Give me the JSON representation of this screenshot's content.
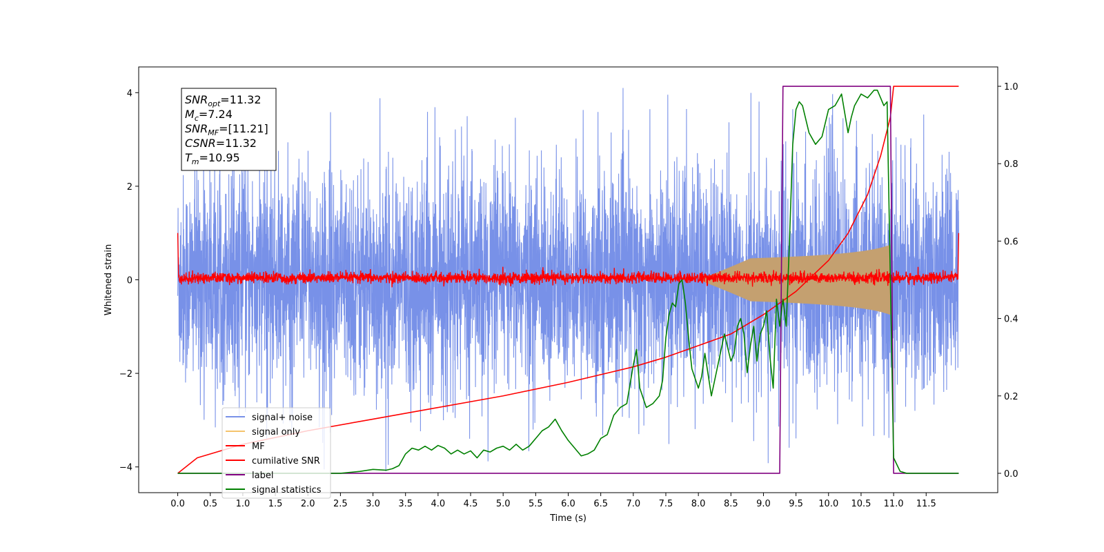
{
  "chart_data": {
    "type": "line",
    "xlabel": "Time (s)",
    "ylabel": "Whitened strain",
    "xlim": [
      -0.6,
      12.6
    ],
    "ylim": [
      -4.55,
      4.55
    ],
    "y2lim": [
      -0.05,
      1.05
    ],
    "x_ticks": [
      0.0,
      0.5,
      1.0,
      1.5,
      2.0,
      2.5,
      3.0,
      3.5,
      4.0,
      4.5,
      5.0,
      5.5,
      6.0,
      6.5,
      7.0,
      7.5,
      8.0,
      8.5,
      9.0,
      9.5,
      10.0,
      10.5,
      11.0,
      11.5
    ],
    "x_tick_labels": [
      "0.0",
      "0.5",
      "1.0",
      "1.5",
      "2.0",
      "2.5",
      "3.0",
      "3.5",
      "4.0",
      "4.5",
      "5.0",
      "5.5",
      "6.0",
      "6.5",
      "7.0",
      "7.5",
      "8.0",
      "8.5",
      "9.0",
      "9.5",
      "10.0",
      "10.5",
      "11.0",
      "11.5"
    ],
    "y_ticks": [
      -4,
      -2,
      0,
      2,
      4
    ],
    "y_tick_labels": [
      "−4",
      "−2",
      "0",
      "2",
      "4"
    ],
    "y2_ticks": [
      0.0,
      0.2,
      0.4,
      0.6,
      0.8,
      1.0
    ],
    "y2_tick_labels": [
      "0.0",
      "0.2",
      "0.4",
      "0.6",
      "0.8",
      "1.0"
    ],
    "grid": false,
    "legend_position": "lower-left",
    "annotation": {
      "lines": [
        {
          "base": "SNR",
          "sub": "opt",
          "value": "=11.32"
        },
        {
          "base": "M",
          "sub": "c",
          "value": "=7.24"
        },
        {
          "base": "SNR",
          "sub": "MF",
          "value": "=[11.21]"
        },
        {
          "base": "CSNR",
          "sub": "",
          "value": "=11.32"
        },
        {
          "base": "T",
          "sub": "m",
          "value": "=10.95"
        }
      ]
    },
    "series": [
      {
        "name": "signal+ noise",
        "color": "#7891e8",
        "axis": "left",
        "style": "noise",
        "x_range": [
          0.0,
          12.0
        ],
        "y_typical_range": [
          -2.3,
          2.3
        ],
        "y_extremes": [
          -4.15,
          4.1
        ]
      },
      {
        "name": "signal only",
        "color": "#f5c36b",
        "axis": "left",
        "style": "chirp",
        "x_range": [
          0.0,
          10.95
        ],
        "envelope_at_end": 0.75
      },
      {
        "name": "MF",
        "color": "#ff0000",
        "axis": "left",
        "style": "noise",
        "x_range": [
          0.0,
          12.0
        ],
        "y_typical_range": [
          -0.1,
          0.15
        ]
      },
      {
        "name": "cumilative SNR",
        "color": "#ff0000",
        "axis": "right",
        "x": [
          0.0,
          0.3,
          1.0,
          2.0,
          3.0,
          4.0,
          5.0,
          6.0,
          7.0,
          7.5,
          8.0,
          8.5,
          9.0,
          9.5,
          10.0,
          10.3,
          10.6,
          10.8,
          10.95,
          11.0,
          12.0
        ],
        "y": [
          0.0,
          0.04,
          0.075,
          0.11,
          0.14,
          0.17,
          0.2,
          0.235,
          0.275,
          0.3,
          0.33,
          0.36,
          0.41,
          0.47,
          0.55,
          0.62,
          0.72,
          0.82,
          0.92,
          1.0,
          1.0
        ]
      },
      {
        "name": "label",
        "color": "#800080",
        "axis": "right",
        "x": [
          0.0,
          9.25,
          9.3,
          10.95,
          11.0,
          12.0
        ],
        "y": [
          0.0,
          0.0,
          1.0,
          1.0,
          0.0,
          0.0
        ]
      },
      {
        "name": "signal statistics",
        "color": "#008000",
        "axis": "right",
        "x": [
          0.0,
          0.5,
          1.0,
          1.5,
          2.0,
          2.5,
          2.8,
          3.0,
          3.2,
          3.3,
          3.4,
          3.5,
          3.6,
          3.7,
          3.8,
          3.9,
          4.0,
          4.1,
          4.2,
          4.3,
          4.4,
          4.5,
          4.6,
          4.7,
          4.8,
          4.9,
          5.0,
          5.1,
          5.2,
          5.3,
          5.4,
          5.5,
          5.6,
          5.7,
          5.8,
          5.9,
          6.0,
          6.1,
          6.2,
          6.3,
          6.4,
          6.5,
          6.6,
          6.7,
          6.8,
          6.9,
          7.0,
          7.05,
          7.1,
          7.2,
          7.3,
          7.4,
          7.45,
          7.5,
          7.55,
          7.6,
          7.65,
          7.7,
          7.75,
          7.8,
          7.85,
          7.9,
          8.0,
          8.05,
          8.1,
          8.2,
          8.3,
          8.4,
          8.5,
          8.55,
          8.6,
          8.65,
          8.7,
          8.75,
          8.8,
          8.85,
          8.9,
          8.95,
          9.0,
          9.05,
          9.1,
          9.15,
          9.2,
          9.25,
          9.3,
          9.35,
          9.4,
          9.45,
          9.5,
          9.55,
          9.6,
          9.7,
          9.8,
          9.9,
          10.0,
          10.1,
          10.2,
          10.3,
          10.35,
          10.4,
          10.5,
          10.6,
          10.7,
          10.75,
          10.8,
          10.85,
          10.9,
          11.0,
          11.1,
          11.2,
          12.0
        ],
        "y": [
          0.0,
          0.0,
          0.0,
          0.0,
          0.0,
          0.0,
          0.005,
          0.01,
          0.008,
          0.012,
          0.02,
          0.05,
          0.065,
          0.06,
          0.07,
          0.06,
          0.072,
          0.065,
          0.05,
          0.06,
          0.05,
          0.058,
          0.04,
          0.06,
          0.055,
          0.065,
          0.07,
          0.06,
          0.075,
          0.06,
          0.07,
          0.09,
          0.11,
          0.12,
          0.14,
          0.11,
          0.085,
          0.065,
          0.045,
          0.05,
          0.06,
          0.09,
          0.1,
          0.15,
          0.17,
          0.18,
          0.28,
          0.32,
          0.22,
          0.17,
          0.18,
          0.2,
          0.24,
          0.35,
          0.41,
          0.44,
          0.43,
          0.49,
          0.5,
          0.44,
          0.35,
          0.27,
          0.22,
          0.25,
          0.31,
          0.2,
          0.28,
          0.36,
          0.29,
          0.31,
          0.38,
          0.4,
          0.36,
          0.26,
          0.33,
          0.38,
          0.29,
          0.36,
          0.38,
          0.42,
          0.3,
          0.22,
          0.45,
          0.38,
          0.45,
          0.38,
          0.6,
          0.85,
          0.94,
          0.96,
          0.95,
          0.88,
          0.85,
          0.87,
          0.94,
          0.95,
          0.98,
          0.88,
          0.92,
          0.95,
          0.98,
          0.97,
          0.99,
          0.99,
          0.97,
          0.95,
          0.96,
          0.04,
          0.005,
          0.0,
          0.0
        ]
      }
    ]
  }
}
